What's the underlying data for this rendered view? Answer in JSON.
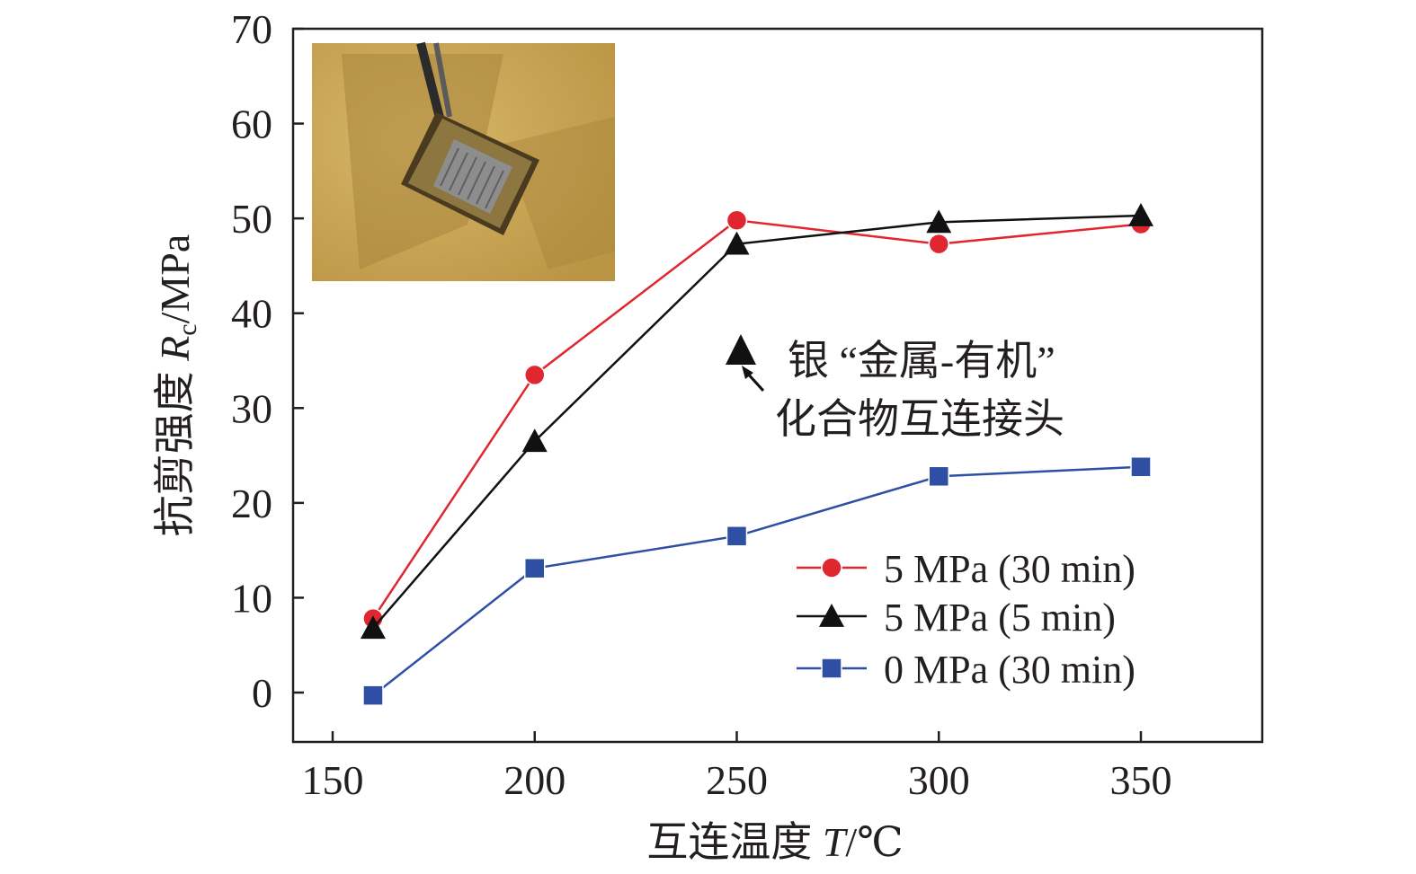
{
  "chart_data": {
    "type": "line",
    "xlabel": "互连温度 T/℃",
    "xlabel_parts": {
      "prefix": "互连温度 ",
      "var": "T",
      "unit": "/℃"
    },
    "ylabel": "抗剪强度 Rc/MPa",
    "ylabel_parts": {
      "prefix": "抗剪强度 ",
      "var": "R",
      "sub": "c",
      "unit": "/MPa"
    },
    "xlim": [
      140,
      380
    ],
    "ylim": [
      -5,
      70
    ],
    "xticks": [
      150,
      200,
      250,
      300,
      350
    ],
    "yticks": [
      0,
      10,
      20,
      30,
      40,
      50,
      60,
      70
    ],
    "grid": false,
    "legend_position": "bottom-right",
    "series": [
      {
        "name": "5 MPa (30 min)",
        "marker": "circle",
        "color": "#e0262e",
        "x": [
          160,
          200,
          250,
          300,
          350
        ],
        "y": [
          7.8,
          33.5,
          49.8,
          47.3,
          49.4
        ]
      },
      {
        "name": "5 MPa (5 min)",
        "marker": "triangle",
        "color": "#111111",
        "x": [
          160,
          200,
          250,
          300,
          350
        ],
        "y": [
          6.8,
          26.5,
          47.3,
          49.6,
          50.3
        ]
      },
      {
        "name": "0 MPa (30 min)",
        "marker": "square",
        "color": "#2e4fa3",
        "x": [
          160,
          200,
          250,
          300,
          350
        ],
        "y": [
          -0.3,
          13.1,
          16.5,
          22.8,
          23.8
        ]
      }
    ],
    "annotation": {
      "marker": "triangle",
      "x": 251,
      "y": 36,
      "line1": "银 “金属-有机”",
      "line2": "化合物互连接头"
    },
    "inset_photo": {
      "subject": "chip-on-substrate-photo",
      "colors": {
        "background": "#c9a455",
        "shadow": "#9a7a3c",
        "chip": "#6b5a3a",
        "die": "#8a8a8a"
      }
    }
  }
}
